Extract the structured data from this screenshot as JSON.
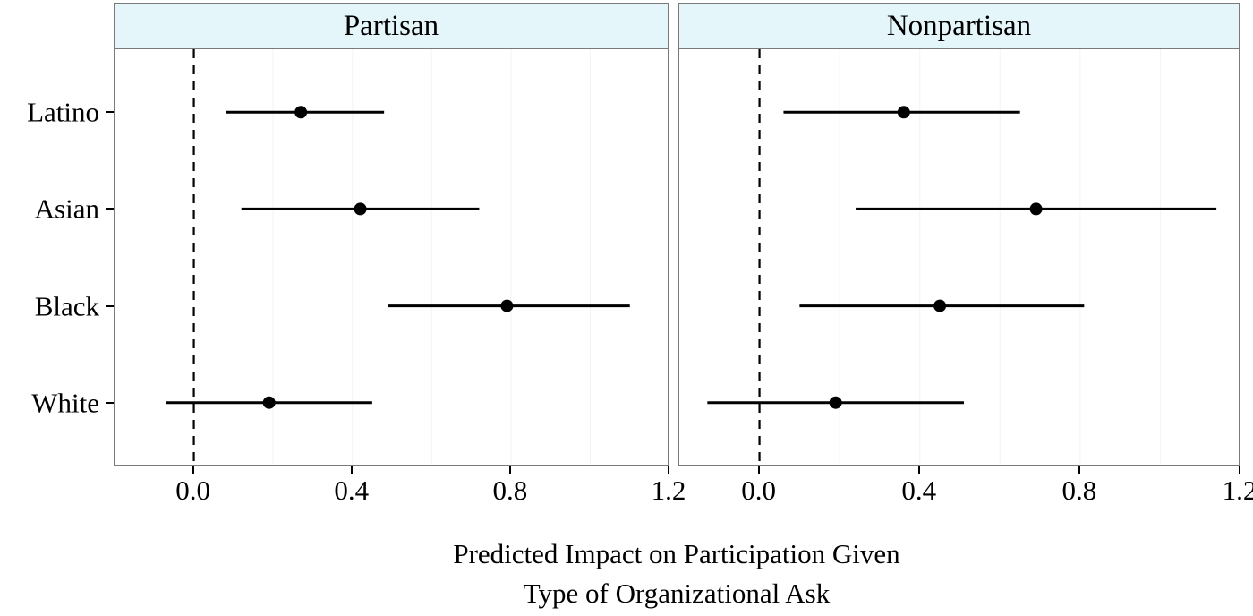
{
  "chart_data": {
    "type": "scatter",
    "subtype": "dot-and-whisker forest plot, two panels",
    "categories": [
      "Latino",
      "Asian",
      "Black",
      "White"
    ],
    "x_ticks": [
      0.0,
      0.4,
      0.8,
      1.2
    ],
    "x_tick_labels": [
      "0.0",
      "0.4",
      "0.8",
      "1.2"
    ],
    "xlim": [
      -0.2,
      1.2
    ],
    "reference_line": 0,
    "grid": "faint vertical minor gridlines",
    "panels": [
      {
        "title": "Partisan",
        "rows": [
          {
            "category": "Latino",
            "estimate": 0.27,
            "lo": 0.08,
            "hi": 0.48
          },
          {
            "category": "Asian",
            "estimate": 0.42,
            "lo": 0.12,
            "hi": 0.72
          },
          {
            "category": "Black",
            "estimate": 0.79,
            "lo": 0.49,
            "hi": 1.1
          },
          {
            "category": "White",
            "estimate": 0.19,
            "lo": -0.07,
            "hi": 0.45
          }
        ]
      },
      {
        "title": "Nonpartisan",
        "rows": [
          {
            "category": "Latino",
            "estimate": 0.36,
            "lo": 0.06,
            "hi": 0.65
          },
          {
            "category": "Asian",
            "estimate": 0.69,
            "lo": 0.24,
            "hi": 1.14
          },
          {
            "category": "Black",
            "estimate": 0.45,
            "lo": 0.1,
            "hi": 0.81
          },
          {
            "category": "White",
            "estimate": 0.19,
            "lo": -0.13,
            "hi": 0.51
          }
        ]
      }
    ],
    "xlabel_line1": "Predicted Impact on Participation Given",
    "xlabel_line2": "Type of Organizational Ask",
    "ylabel": "",
    "colors": {
      "marker": "#000000",
      "ci_line": "#000000",
      "reference_line": "#000000",
      "strip_fill": "#e4f6fa",
      "panel_border": "#7a7a7a",
      "gridline": "#f3f3f3",
      "background": "#ffffff"
    }
  }
}
